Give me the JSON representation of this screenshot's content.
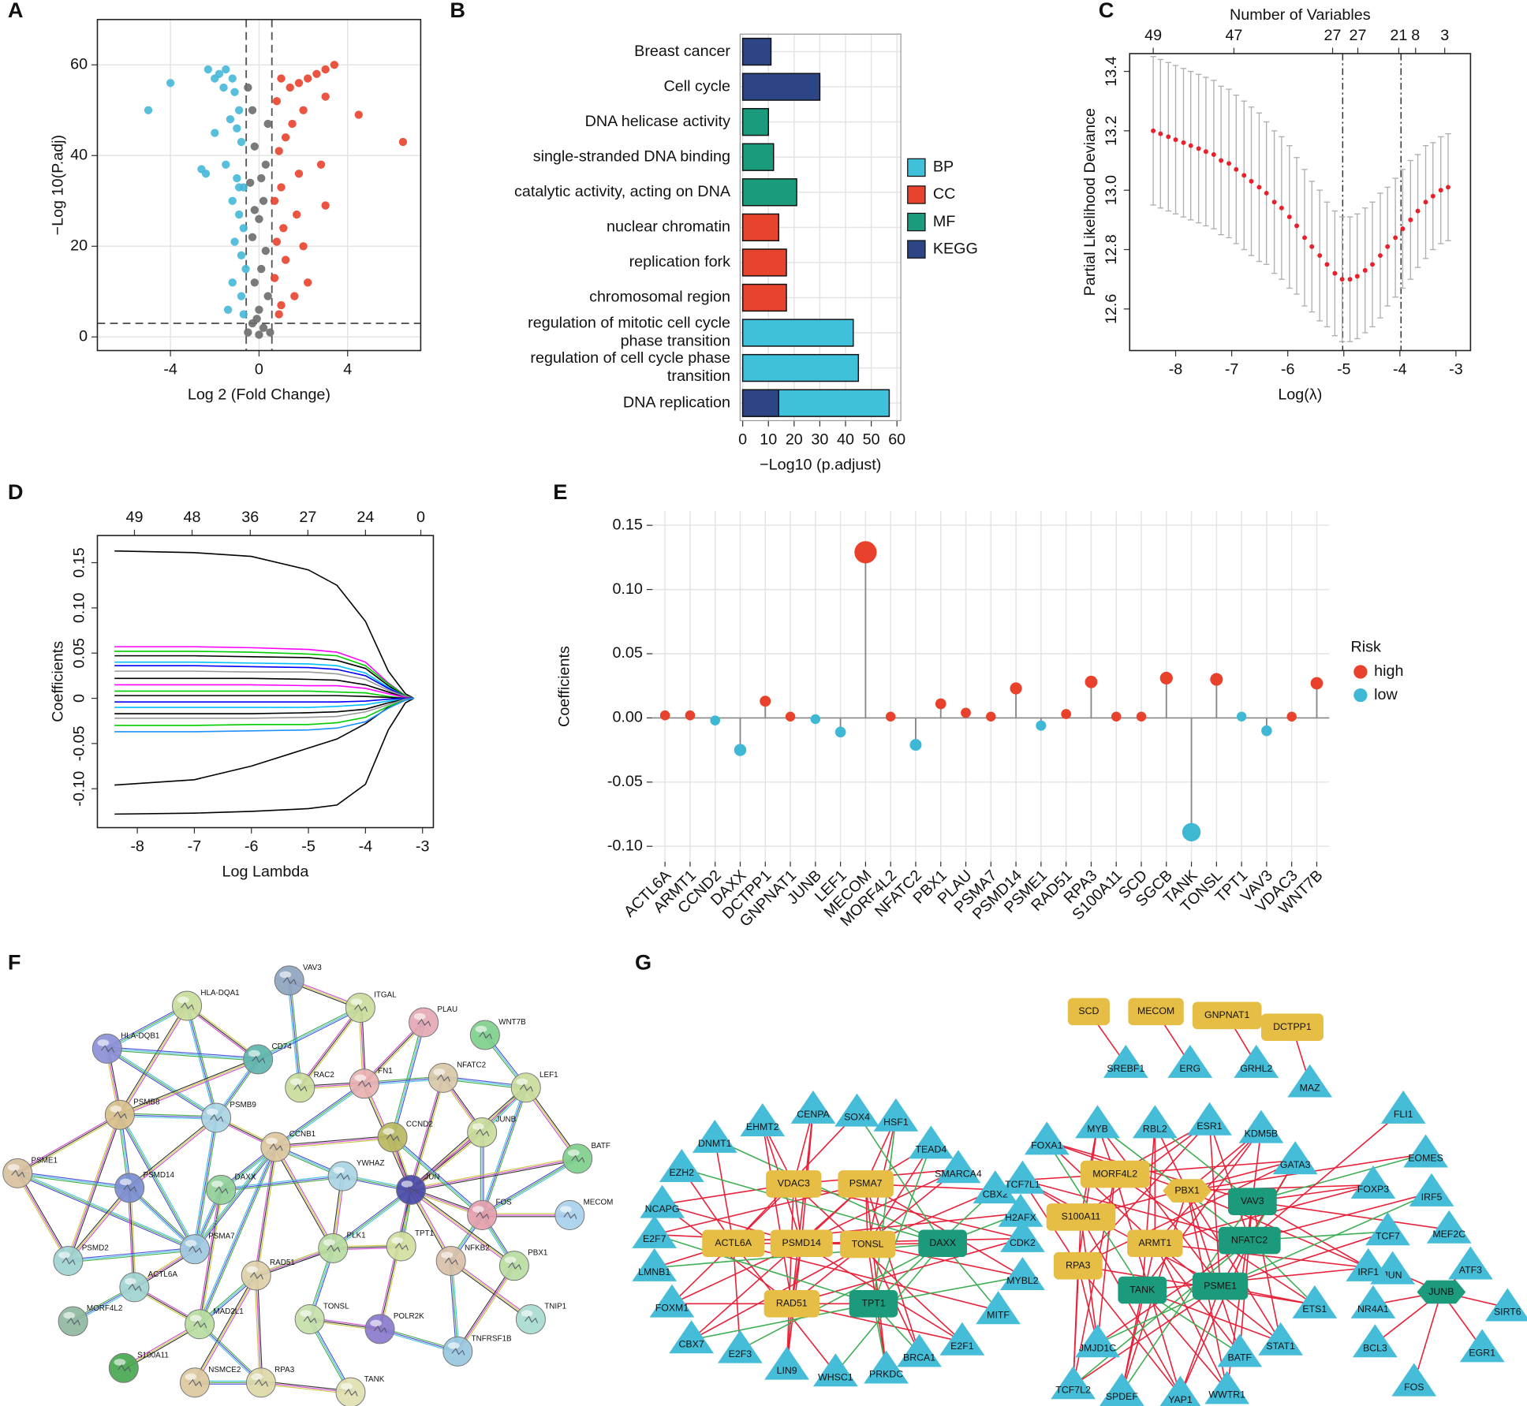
{
  "chart_data": [
    {
      "panel": "A",
      "type": "scatter",
      "xlabel": "Log 2 (Fold  Change)",
      "ylabel": "−Log 10(P.adj)",
      "xlim": [
        -7.3,
        7.3
      ],
      "ylim": [
        -3,
        70
      ],
      "xticks": [
        -4,
        0,
        4
      ],
      "yticks": [
        0,
        20,
        40,
        60
      ],
      "grid": true,
      "vlines": [
        -0.58,
        0.58
      ],
      "hlines": [
        3
      ],
      "series": [
        {
          "color": "#45b8d8",
          "x": [
            -4.0,
            -5.0,
            -2.3,
            -2.0,
            -1.8,
            -1.5,
            -1.2,
            -1.6,
            -1.1,
            -0.9,
            -1.3,
            -1.0,
            -2.0,
            -0.8,
            -2.6,
            -2.4,
            -1.5,
            -1.0,
            -0.7,
            -1.2,
            -0.9,
            -0.7,
            -1.1,
            -0.8,
            -0.6,
            -1.2,
            -0.8,
            -1.4,
            -0.7,
            -0.9
          ],
          "values": [
            56,
            50,
            59,
            57,
            58,
            59,
            57,
            55,
            54,
            50,
            48,
            46,
            45,
            43,
            37,
            36,
            38,
            35,
            33,
            30,
            27,
            24,
            21,
            18,
            15,
            12,
            9,
            6,
            5,
            33
          ]
        },
        {
          "color": "#e8412c",
          "x": [
            6.5,
            4.5,
            3.4,
            3.0,
            2.6,
            2.2,
            1.8,
            1.4,
            1.0,
            0.8,
            3.0,
            2.0,
            1.5,
            1.2,
            0.9,
            2.8,
            1.8,
            1.0,
            0.7,
            3.0,
            1.7,
            1.1,
            0.8,
            2.0,
            1.2,
            0.7,
            1.6,
            1.0,
            2.2,
            0.9
          ],
          "values": [
            43,
            49,
            60,
            59,
            58,
            57,
            56,
            55,
            57,
            52,
            53,
            50,
            47,
            44,
            41,
            38,
            36,
            33,
            30,
            29,
            27,
            24,
            21,
            20,
            17,
            13,
            9,
            7,
            12,
            5
          ]
        },
        {
          "color": "#6b6b6b",
          "x": [
            -0.5,
            -0.3,
            0.4,
            -0.2,
            0.3,
            -0.4,
            0.2,
            0.0,
            -0.3,
            0.3,
            0.1,
            -0.2,
            0.4,
            0.0,
            -0.3,
            0.2,
            -0.5,
            0.5,
            0.0,
            -0.1,
            0.1,
            -0.2
          ],
          "values": [
            55,
            50,
            47,
            42,
            38,
            34,
            30,
            26,
            22,
            19,
            15,
            12,
            9,
            6,
            3,
            2,
            1,
            1,
            0.5,
            4,
            35,
            28
          ]
        }
      ]
    },
    {
      "panel": "B",
      "type": "barh",
      "xlabel": "−Log10 (p.adjust)",
      "categories": [
        "Breast cancer",
        "Cell cycle",
        "DNA helicase activity",
        "single-stranded DNA binding",
        "catalytic activity, acting on DNA",
        "nuclear chromatin",
        "replication fork",
        "chromosomal region",
        "regulation of mitotic cell cycle\nphase transition",
        "regulation of cell cycle phase\ntransition",
        "DNA replication"
      ],
      "xlim": [
        -1,
        61.5
      ],
      "xticks": [
        0,
        10,
        20,
        30,
        40,
        50,
        60
      ],
      "grid": true,
      "legend": "right",
      "series": [
        {
          "name": "BP",
          "color": "#3fc1dc",
          "values": [
            null,
            null,
            null,
            null,
            null,
            null,
            null,
            null,
            43,
            45,
            57
          ]
        },
        {
          "name": "CC",
          "color": "#e8432d",
          "values": [
            null,
            null,
            null,
            null,
            null,
            14,
            17,
            17,
            null,
            null,
            null
          ]
        },
        {
          "name": "MF",
          "color": "#1a9c7c",
          "values": [
            null,
            null,
            10,
            12,
            21,
            null,
            null,
            null,
            null,
            null,
            null
          ]
        },
        {
          "name": "KEGG",
          "color": "#2d4584",
          "values": [
            11,
            30,
            null,
            null,
            null,
            null,
            null,
            null,
            null,
            null,
            14
          ]
        }
      ]
    },
    {
      "panel": "C",
      "type": "line",
      "xlabel": "Log(λ)",
      "ylabel": "Partial Likelihood Deviance",
      "top_axis_label": "Number of Variables",
      "xlim": [
        -8.82,
        -2.74
      ],
      "ylim": [
        12.46,
        13.46
      ],
      "xticks": [
        -8,
        -7,
        -6,
        -5,
        -4,
        -3
      ],
      "yticks": [
        12.6,
        12.8,
        {
          "value": 13,
          "label": "13.0"
        },
        13.2,
        13.4
      ],
      "top_ticks": [
        {
          "value": -8.4,
          "label": "49"
        },
        {
          "value": -6.96,
          "label": "47"
        },
        {
          "value": -5.2,
          "label": "27"
        },
        {
          "value": -4.75,
          "label": "27"
        },
        {
          "value": -4.02,
          "label": "21"
        },
        {
          "value": -3.72,
          "label": "8"
        },
        {
          "value": -3.2,
          "label": "3"
        }
      ],
      "vlines": [
        -5.02,
        -3.98
      ],
      "x": [
        -8.4,
        -8.27,
        -8.13,
        -8.0,
        -7.86,
        -7.73,
        -7.59,
        -7.46,
        -7.32,
        -7.19,
        -7.05,
        -6.92,
        -6.78,
        -6.65,
        -6.51,
        -6.38,
        -6.24,
        -6.11,
        -5.97,
        -5.84,
        -5.7,
        -5.57,
        -5.43,
        -5.3,
        -5.16,
        -5.03,
        -4.89,
        -4.76,
        -4.62,
        -4.49,
        -4.35,
        -4.22,
        -4.08,
        -3.95,
        -3.81,
        -3.68,
        -3.54,
        -3.41,
        -3.27,
        -3.14
      ],
      "series": [
        {
          "color": "#e8202a",
          "error_color": "#b0b0b0",
          "values": [
            13.2,
            13.19,
            13.18,
            13.17,
            13.16,
            13.15,
            13.14,
            13.13,
            13.12,
            13.1,
            13.09,
            13.07,
            13.05,
            13.03,
            13.01,
            12.99,
            12.96,
            12.94,
            12.91,
            12.88,
            12.84,
            12.81,
            12.78,
            12.75,
            12.72,
            12.7,
            12.7,
            12.71,
            12.73,
            12.75,
            12.78,
            12.81,
            12.84,
            12.87,
            12.9,
            12.93,
            12.96,
            12.98,
            13.0,
            13.01
          ],
          "errors": [
            0.25,
            0.25,
            0.25,
            0.25,
            0.25,
            0.25,
            0.25,
            0.25,
            0.25,
            0.25,
            0.25,
            0.25,
            0.25,
            0.25,
            0.25,
            0.24,
            0.24,
            0.24,
            0.24,
            0.23,
            0.23,
            0.22,
            0.22,
            0.21,
            0.21,
            0.21,
            0.21,
            0.21,
            0.21,
            0.21,
            0.21,
            0.2,
            0.2,
            0.2,
            0.2,
            0.19,
            0.19,
            0.18,
            0.18,
            0.18
          ]
        }
      ]
    },
    {
      "panel": "D",
      "type": "line",
      "xlabel": "Log Lambda",
      "ylabel": "Coefficients",
      "xlim": [
        -8.7,
        -2.81
      ],
      "ylim": [
        -0.143,
        0.18
      ],
      "xticks": [
        -8,
        -7,
        -6,
        -5,
        -4,
        -3
      ],
      "yticks": [
        {
          "value": -0.1,
          "label": "-0.10"
        },
        -0.05,
        0,
        0.05,
        {
          "value": 0.1,
          "label": "0.10"
        },
        0.15
      ],
      "top_ticks": [
        {
          "value": -8.05,
          "label": "49"
        },
        {
          "value": -7.04,
          "label": "48"
        },
        {
          "value": -6.02,
          "label": "36"
        },
        {
          "value": -5.01,
          "label": "27"
        },
        {
          "value": -4.0,
          "label": "24"
        },
        {
          "value": -3.03,
          "label": "0"
        }
      ],
      "x": [
        -8.4,
        -7,
        -6,
        -5,
        -4.5,
        -4,
        -3.6,
        -3.3,
        -3.15
      ],
      "series": [
        {
          "color": "#000000",
          "values": [
            0.163,
            0.161,
            0.157,
            0.142,
            0.125,
            0.085,
            0.03,
            0.005,
            0
          ]
        },
        {
          "color": "#000000",
          "values": [
            -0.128,
            -0.127,
            -0.125,
            -0.122,
            -0.118,
            -0.095,
            -0.035,
            -0.005,
            0
          ]
        },
        {
          "color": "#000000",
          "values": [
            -0.096,
            -0.09,
            -0.075,
            -0.055,
            -0.045,
            -0.028,
            -0.01,
            -0.002,
            0
          ]
        },
        {
          "color": "#ff00ff",
          "values": [
            0.057,
            0.057,
            0.056,
            0.054,
            0.051,
            0.04,
            0.017,
            0.003,
            0
          ]
        },
        {
          "color": "#00cd00",
          "values": [
            0.052,
            0.052,
            0.051,
            0.049,
            0.047,
            0.036,
            0.016,
            0.003,
            0
          ]
        },
        {
          "color": "#000000",
          "values": [
            0.047,
            0.047,
            0.046,
            0.045,
            0.042,
            0.033,
            0.014,
            0.002,
            0
          ]
        },
        {
          "color": "#00bfff",
          "values": [
            0.04,
            0.04,
            0.039,
            0.038,
            0.036,
            0.028,
            0.012,
            0.002,
            0
          ]
        },
        {
          "color": "#0000ff",
          "values": [
            0.036,
            0.036,
            0.035,
            0.034,
            0.032,
            0.025,
            0.011,
            0.002,
            0
          ]
        },
        {
          "color": "#999999",
          "values": [
            0.03,
            0.03,
            0.029,
            0.029,
            0.027,
            0.021,
            0.009,
            0.002,
            0
          ]
        },
        {
          "color": "#000000",
          "values": [
            0.022,
            0.022,
            0.022,
            0.021,
            0.02,
            0.015,
            0.007,
            0.001,
            0
          ]
        },
        {
          "color": "#ff00ff",
          "values": [
            0.015,
            0.015,
            0.015,
            0.014,
            0.014,
            0.011,
            0.005,
            0.001,
            0
          ]
        },
        {
          "color": "#00cd00",
          "values": [
            0.008,
            0.008,
            0.008,
            0.008,
            0.007,
            0.006,
            0.002,
            0,
            0
          ]
        },
        {
          "color": "#000000",
          "values": [
            0.003,
            0.003,
            0.003,
            0.003,
            0.003,
            0.002,
            0.001,
            0,
            0
          ]
        },
        {
          "color": "#0000ff",
          "values": [
            -0.004,
            -0.004,
            -0.004,
            -0.004,
            -0.004,
            -0.003,
            -0.001,
            0,
            0
          ]
        },
        {
          "color": "#00bfff",
          "values": [
            -0.01,
            -0.01,
            -0.01,
            -0.01,
            -0.009,
            -0.007,
            -0.003,
            -0.001,
            0
          ]
        },
        {
          "color": "#000000",
          "values": [
            -0.017,
            -0.017,
            -0.017,
            -0.016,
            -0.015,
            -0.012,
            -0.005,
            -0.001,
            0
          ]
        },
        {
          "color": "#999999",
          "values": [
            -0.022,
            -0.022,
            -0.022,
            -0.021,
            -0.02,
            -0.015,
            -0.007,
            -0.001,
            0
          ]
        },
        {
          "color": "#00cd00",
          "values": [
            -0.03,
            -0.03,
            -0.029,
            -0.029,
            -0.027,
            -0.021,
            -0.009,
            -0.002,
            0
          ]
        },
        {
          "color": "#1e90ff",
          "values": [
            -0.037,
            -0.037,
            -0.036,
            -0.035,
            -0.033,
            -0.026,
            -0.011,
            -0.002,
            0
          ]
        }
      ]
    },
    {
      "panel": "E",
      "type": "lollipop",
      "ylabel": "Coefficients",
      "categories": [
        "ACTL6A",
        "ARMT1",
        "CCND2",
        "DAXX",
        "DCTPP1",
        "GNPNAT1",
        "JUNB",
        "LEF1",
        "MECOM",
        "MORF4L2",
        "NFATC2",
        "PBX1",
        "PLAU",
        "PSMA7",
        "PSMD14",
        "PSME1",
        "RAD51",
        "RPA3",
        "S100A11",
        "SCD",
        "SGCB",
        "TANK",
        "TONSL",
        "TPT1",
        "VAV3",
        "VDAC3",
        "WNT7B"
      ],
      "values": [
        0.002,
        0.002,
        -0.002,
        -0.025,
        0.013,
        0.001,
        -0.001,
        -0.011,
        0.129,
        0.001,
        -0.021,
        0.011,
        0.004,
        0.001,
        0.023,
        -0.006,
        0.003,
        0.028,
        0.001,
        0.001,
        0.031,
        -0.089,
        0.03,
        0.001,
        -0.01,
        0.001,
        0.027
      ],
      "risk": [
        "high",
        "high",
        "low",
        "low",
        "high",
        "high",
        "low",
        "low",
        "high",
        "high",
        "low",
        "high",
        "high",
        "high",
        "high",
        "low",
        "high",
        "high",
        "high",
        "high",
        "high",
        "low",
        "high",
        "low",
        "low",
        "high",
        "high"
      ],
      "ylim": [
        -0.112,
        0.161
      ],
      "yticks": [
        {
          "value": -0.1,
          "label": "-0.10"
        },
        -0.05,
        {
          "value": 0,
          "label": "0.00"
        },
        0.05,
        {
          "value": 0.1,
          "label": "0.10"
        },
        0.15
      ],
      "grid": true,
      "legend": "right",
      "legend_title": "Risk",
      "groups": [
        {
          "name": "high",
          "color": "#e8412c"
        },
        {
          "name": "low",
          "color": "#3fb8d6"
        }
      ]
    }
  ],
  "networks": [
    {
      "panel": "F",
      "nodes": [
        "VAV3",
        "ITGAL",
        "HLA-DQA1",
        "PLAU",
        "WNT7B",
        "HLA-DQB1",
        "CD74",
        "RAC2",
        "FN1",
        "NFATC2",
        "LEF1",
        "PSMB8",
        "PSMB9",
        "CCND2",
        "JUNB",
        "BATF",
        "CCNB1",
        "YWHAZ",
        "JUN",
        "PSME1",
        "PSMD14",
        "DAXX",
        "FOS",
        "MECOM",
        "PLK1",
        "TPT1",
        "NFKB2",
        "PBX1",
        "PSMD2",
        "PSMA7",
        "RAD51",
        "ACTL6A",
        "TNIP1",
        "MORF4L2",
        "MAD2L1",
        "TONSL",
        "POLR2K",
        "TNFRSF1B",
        "S100A11",
        "NSMCE2",
        "RPA3",
        "TANK"
      ]
    },
    {
      "panel": "G",
      "nodes": [
        "SCD",
        "MECOM",
        "GNPNAT1",
        "DCTPP1",
        "SREBF1",
        "ERG",
        "GRHL2",
        "MAZ",
        "VDAC3",
        "PSMA7",
        "ACTL6A",
        "PSMD14",
        "TONSL",
        "DAXX",
        "RAD51",
        "TPT1",
        "CENPA",
        "SOX4",
        "HSF1",
        "EHMT2",
        "DNMT1",
        "TEAD4",
        "SMARCA4",
        "EZH2",
        "CBX2",
        "NCAPG",
        "H2AFX",
        "E2F7",
        "CDK2",
        "LMNB1",
        "MYBL2",
        "FOXM1",
        "MITF",
        "CBX7",
        "E2F1",
        "E2F3",
        "BRCA1",
        "LIN9",
        "WHSC1",
        "PRKDC",
        "MORF4L2",
        "PBX1",
        "S100A11",
        "ARMT1",
        "RPA3",
        "VAV3",
        "NFATC2",
        "TANK",
        "PSME1",
        "JUNB",
        "MYB",
        "RBL2",
        "ESR1",
        "KDM5B",
        "FLI1",
        "FOXA1",
        "GATA3",
        "EOMES",
        "TCF7L1",
        "FOXP3",
        "IRF5",
        "MEF2C",
        "TCF7",
        "JUN",
        "ATF3",
        "IRF1",
        "NR4A1",
        "SIRT6",
        "ETS1",
        "BCL3",
        "EGR1",
        "STAT1",
        "JMJD1C",
        "BATF",
        "TCF7L2",
        "SPDEF",
        "YAP1",
        "WWTR1",
        "FOS"
      ]
    }
  ]
}
